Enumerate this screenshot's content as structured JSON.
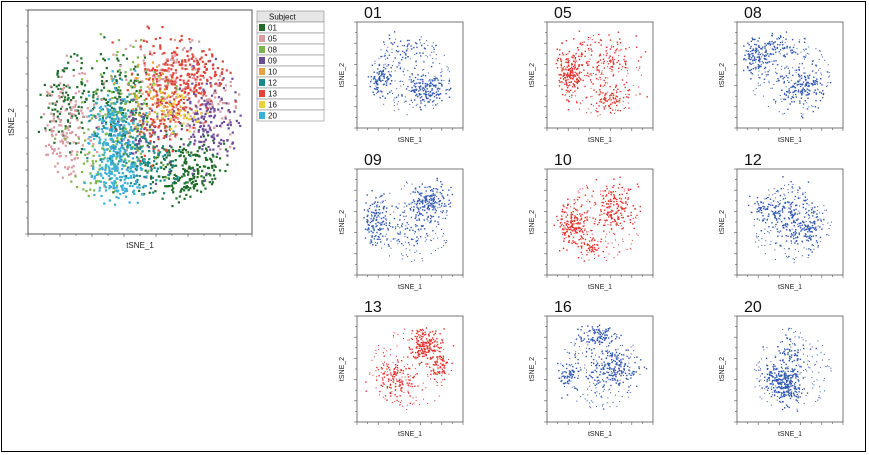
{
  "main_plot": {
    "xlabel": "tSNE_1",
    "ylabel": "tSNE_2",
    "legend_title": "Subject",
    "legend": [
      {
        "label": "01",
        "color": "#1f6b2a"
      },
      {
        "label": "05",
        "color": "#d99aa0"
      },
      {
        "label": "08",
        "color": "#7ab648"
      },
      {
        "label": "09",
        "color": "#6b4c9a"
      },
      {
        "label": "10",
        "color": "#e8a23a"
      },
      {
        "label": "12",
        "color": "#1a8a8a"
      },
      {
        "label": "13",
        "color": "#e0443a"
      },
      {
        "label": "16",
        "color": "#e8d23a"
      },
      {
        "label": "20",
        "color": "#3ab0d8"
      }
    ]
  },
  "panels": [
    {
      "title": "01",
      "color": "#2f56b0",
      "xlabel": "tSNE_1",
      "ylabel": "tSNE_2"
    },
    {
      "title": "05",
      "color": "#e0302a",
      "xlabel": "tSNE_1",
      "ylabel": "tSNE_2"
    },
    {
      "title": "08",
      "color": "#2f56b0",
      "xlabel": "tSNE_1",
      "ylabel": "tSNE_2"
    },
    {
      "title": "09",
      "color": "#2f56b0",
      "xlabel": "tSNE_1",
      "ylabel": "tSNE_2"
    },
    {
      "title": "10",
      "color": "#e0302a",
      "xlabel": "tSNE_1",
      "ylabel": "tSNE_2"
    },
    {
      "title": "12",
      "color": "#2f56b0",
      "xlabel": "tSNE_1",
      "ylabel": "tSNE_2"
    },
    {
      "title": "13",
      "color": "#e0302a",
      "xlabel": "tSNE_1",
      "ylabel": "tSNE_2"
    },
    {
      "title": "16",
      "color": "#2f56b0",
      "xlabel": "tSNE_1",
      "ylabel": "tSNE_2"
    },
    {
      "title": "20",
      "color": "#2f56b0",
      "xlabel": "tSNE_1",
      "ylabel": "tSNE_2"
    }
  ],
  "chart_data": {
    "type": "scatter",
    "title": "",
    "xlabel": "tSNE_1",
    "ylabel": "tSNE_2",
    "series": [
      {
        "name": "01"
      },
      {
        "name": "05"
      },
      {
        "name": "08"
      },
      {
        "name": "09"
      },
      {
        "name": "10"
      },
      {
        "name": "12"
      },
      {
        "name": "13"
      },
      {
        "name": "16"
      },
      {
        "name": "20"
      }
    ],
    "grid": false,
    "legend": "right"
  }
}
